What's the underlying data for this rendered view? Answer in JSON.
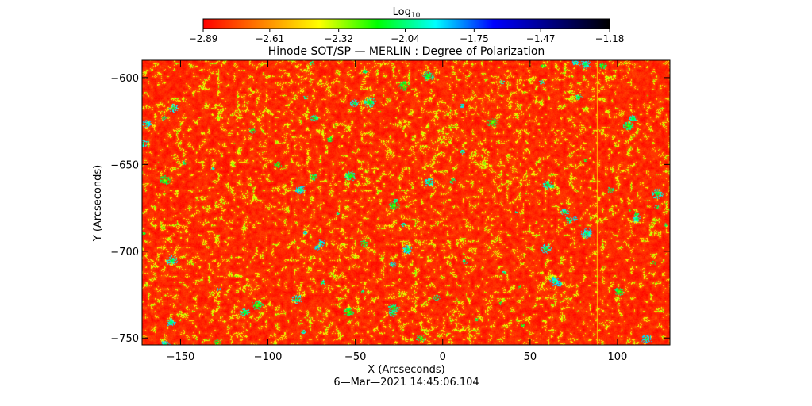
{
  "chart_data": {
    "type": "heatmap",
    "title": "Hinode SOT/SP — MERLIN : Degree of Polarization",
    "xlabel": "X (Arcseconds)",
    "ylabel": "Y (Arcseconds)",
    "footer": "6—Mar—2021 14:45:06.104",
    "xlim": [
      -172,
      130
    ],
    "ylim": [
      -754,
      -590
    ],
    "x_ticks": [
      -150,
      -100,
      -50,
      0,
      50,
      100
    ],
    "x_tick_labels": [
      "−150",
      "−100",
      "−50",
      "0",
      "50",
      "100"
    ],
    "y_ticks": [
      -600,
      -650,
      -700,
      -750
    ],
    "y_tick_labels": [
      "−600",
      "−650",
      "−700",
      "−750"
    ],
    "colorbar": {
      "label_base": "Log",
      "label_sub": "10",
      "range": [
        -2.89,
        -1.18
      ],
      "ticks": [
        -2.89,
        -2.61,
        -2.32,
        -2.04,
        -1.75,
        -1.47,
        -1.18
      ],
      "tick_labels": [
        "−2.89",
        "−2.61",
        "−2.32",
        "−2.04",
        "−1.75",
        "−1.47",
        "−1.18"
      ],
      "colors": [
        "#ff0000",
        "#ff8000",
        "#ffff00",
        "#00ff00",
        "#00ffff",
        "#0000ff",
        "#000080",
        "#000000"
      ]
    },
    "field": {
      "dominant_value": -2.8,
      "variation": 0.1,
      "speckle_value": -2.45,
      "speckle_fraction": 0.28,
      "patch_value_range": [
        -2.1,
        -1.85
      ],
      "patch_count": 90,
      "faint_vertical_line_x": 88
    },
    "grid": false
  }
}
